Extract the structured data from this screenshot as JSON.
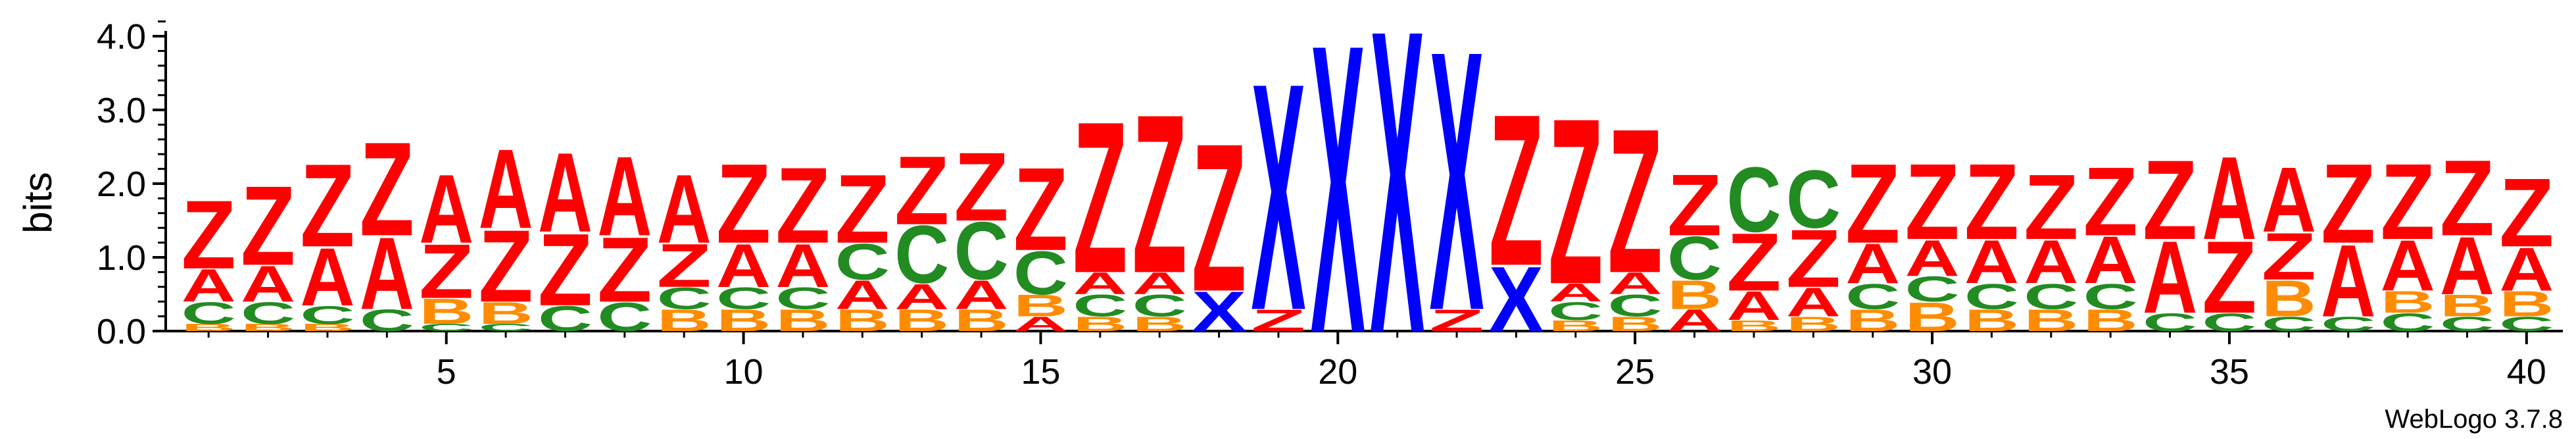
{
  "chart_data": {
    "type": "sequence-logo",
    "ylabel": "bits",
    "ylim": [
      0,
      4.2
    ],
    "y_ticks": [
      "0.0",
      "1.0",
      "2.0",
      "3.0",
      "4.0"
    ],
    "x_tick_labels": [
      "5",
      "10",
      "15",
      "20",
      "25",
      "30",
      "35",
      "40"
    ],
    "x_tick_positions": [
      5,
      10,
      15,
      20,
      25,
      30,
      35,
      40
    ],
    "credit": "WebLogo 3.7.8",
    "colors": {
      "Z": "#ff0000",
      "A": "#ff0000",
      "X": "#0000ff",
      "C": "#228b22",
      "B": "#ff8c00"
    },
    "positions": [
      {
        "pos": 1,
        "stack": [
          [
            "B",
            0.1
          ],
          [
            "C",
            0.3
          ],
          [
            "A",
            0.45
          ],
          [
            "Z",
            0.95
          ]
        ]
      },
      {
        "pos": 2,
        "stack": [
          [
            "B",
            0.1
          ],
          [
            "C",
            0.3
          ],
          [
            "A",
            0.5
          ],
          [
            "Z",
            1.1
          ]
        ]
      },
      {
        "pos": 3,
        "stack": [
          [
            "B",
            0.1
          ],
          [
            "C",
            0.25
          ],
          [
            "A",
            0.8
          ],
          [
            "Z",
            1.15
          ]
        ]
      },
      {
        "pos": 4,
        "stack": [
          [
            "C",
            0.3
          ],
          [
            "A",
            1.0
          ],
          [
            "Z",
            1.3
          ]
        ]
      },
      {
        "pos": 5,
        "stack": [
          [
            "C",
            0.1
          ],
          [
            "B",
            0.35
          ],
          [
            "Z",
            0.75
          ],
          [
            "A",
            0.95
          ]
        ]
      },
      {
        "pos": 6,
        "stack": [
          [
            "C",
            0.1
          ],
          [
            "B",
            0.3
          ],
          [
            "Z",
            1.0
          ],
          [
            "A",
            1.1
          ]
        ]
      },
      {
        "pos": 7,
        "stack": [
          [
            "C",
            0.35
          ],
          [
            "Z",
            1.0
          ],
          [
            "A",
            1.1
          ]
        ]
      },
      {
        "pos": 8,
        "stack": [
          [
            "C",
            0.4
          ],
          [
            "Z",
            0.9
          ],
          [
            "A",
            1.1
          ]
        ]
      },
      {
        "pos": 9,
        "stack": [
          [
            "B",
            0.3
          ],
          [
            "C",
            0.3
          ],
          [
            "Z",
            0.6
          ],
          [
            "A",
            0.95
          ]
        ]
      },
      {
        "pos": 10,
        "stack": [
          [
            "B",
            0.3
          ],
          [
            "C",
            0.3
          ],
          [
            "A",
            0.6
          ],
          [
            "Z",
            1.1
          ]
        ]
      },
      {
        "pos": 11,
        "stack": [
          [
            "B",
            0.3
          ],
          [
            "C",
            0.3
          ],
          [
            "A",
            0.6
          ],
          [
            "Z",
            1.05
          ]
        ]
      },
      {
        "pos": 12,
        "stack": [
          [
            "B",
            0.3
          ],
          [
            "A",
            0.4
          ],
          [
            "C",
            0.5
          ],
          [
            "Z",
            0.95
          ]
        ]
      },
      {
        "pos": 13,
        "stack": [
          [
            "B",
            0.3
          ],
          [
            "A",
            0.35
          ],
          [
            "C",
            0.8
          ],
          [
            "Z",
            0.95
          ]
        ]
      },
      {
        "pos": 14,
        "stack": [
          [
            "B",
            0.3
          ],
          [
            "A",
            0.4
          ],
          [
            "C",
            0.8
          ],
          [
            "Z",
            0.95
          ]
        ]
      },
      {
        "pos": 15,
        "stack": [
          [
            "A",
            0.2
          ],
          [
            "B",
            0.3
          ],
          [
            "C",
            0.6
          ],
          [
            "Z",
            1.15
          ]
        ]
      },
      {
        "pos": 16,
        "stack": [
          [
            "B",
            0.2
          ],
          [
            "C",
            0.3
          ],
          [
            "A",
            0.3
          ],
          [
            "Z",
            2.1
          ]
        ]
      },
      {
        "pos": 17,
        "stack": [
          [
            "B",
            0.2
          ],
          [
            "C",
            0.3
          ],
          [
            "A",
            0.3
          ],
          [
            "Z",
            2.2
          ]
        ]
      },
      {
        "pos": 18,
        "stack": [
          [
            "X",
            0.55
          ],
          [
            "Z",
            2.05
          ]
        ]
      },
      {
        "pos": 19,
        "stack": [
          [
            "Z",
            0.3
          ],
          [
            "X",
            3.15
          ]
        ]
      },
      {
        "pos": 20,
        "stack": [
          [
            "X",
            4.0
          ]
        ]
      },
      {
        "pos": 21,
        "stack": [
          [
            "X",
            4.2
          ]
        ]
      },
      {
        "pos": 22,
        "stack": [
          [
            "Z",
            0.3
          ],
          [
            "X",
            3.6
          ]
        ]
      },
      {
        "pos": 23,
        "stack": [
          [
            "X",
            0.9
          ],
          [
            "Z",
            2.1
          ]
        ]
      },
      {
        "pos": 24,
        "stack": [
          [
            "B",
            0.15
          ],
          [
            "C",
            0.25
          ],
          [
            "A",
            0.25
          ],
          [
            "Z",
            2.3
          ]
        ]
      },
      {
        "pos": 25,
        "stack": [
          [
            "B",
            0.2
          ],
          [
            "C",
            0.3
          ],
          [
            "A",
            0.3
          ],
          [
            "Z",
            2.0
          ]
        ]
      },
      {
        "pos": 26,
        "stack": [
          [
            "A",
            0.3
          ],
          [
            "B",
            0.4
          ],
          [
            "C",
            0.6
          ],
          [
            "Z",
            0.85
          ]
        ]
      },
      {
        "pos": 27,
        "stack": [
          [
            "B",
            0.15
          ],
          [
            "A",
            0.4
          ],
          [
            "Z",
            0.8
          ],
          [
            "C",
            0.9
          ]
        ]
      },
      {
        "pos": 28,
        "stack": [
          [
            "B",
            0.2
          ],
          [
            "A",
            0.4
          ],
          [
            "Z",
            0.8
          ],
          [
            "C",
            0.8
          ]
        ]
      },
      {
        "pos": 29,
        "stack": [
          [
            "B",
            0.3
          ],
          [
            "C",
            0.35
          ],
          [
            "A",
            0.55
          ],
          [
            "Z",
            1.1
          ]
        ]
      },
      {
        "pos": 30,
        "stack": [
          [
            "B",
            0.4
          ],
          [
            "C",
            0.35
          ],
          [
            "A",
            0.5
          ],
          [
            "Z",
            1.05
          ]
        ]
      },
      {
        "pos": 31,
        "stack": [
          [
            "B",
            0.3
          ],
          [
            "C",
            0.35
          ],
          [
            "A",
            0.6
          ],
          [
            "Z",
            1.05
          ]
        ]
      },
      {
        "pos": 32,
        "stack": [
          [
            "B",
            0.3
          ],
          [
            "C",
            0.35
          ],
          [
            "A",
            0.6
          ],
          [
            "Z",
            0.9
          ]
        ]
      },
      {
        "pos": 33,
        "stack": [
          [
            "B",
            0.3
          ],
          [
            "C",
            0.35
          ],
          [
            "A",
            0.65
          ],
          [
            "Z",
            0.95
          ]
        ]
      },
      {
        "pos": 34,
        "stack": [
          [
            "C",
            0.25
          ],
          [
            "A",
            1.0
          ],
          [
            "Z",
            1.1
          ]
        ]
      },
      {
        "pos": 35,
        "stack": [
          [
            "C",
            0.25
          ],
          [
            "Z",
            1.0
          ],
          [
            "A",
            1.15
          ]
        ]
      },
      {
        "pos": 36,
        "stack": [
          [
            "C",
            0.2
          ],
          [
            "B",
            0.5
          ],
          [
            "Z",
            0.65
          ],
          [
            "A",
            0.9
          ]
        ]
      },
      {
        "pos": 37,
        "stack": [
          [
            "C",
            0.2
          ],
          [
            "A",
            1.0
          ],
          [
            "Z",
            1.1
          ]
        ]
      },
      {
        "pos": 38,
        "stack": [
          [
            "C",
            0.25
          ],
          [
            "B",
            0.3
          ],
          [
            "A",
            0.7
          ],
          [
            "Z",
            1.05
          ]
        ]
      },
      {
        "pos": 39,
        "stack": [
          [
            "C",
            0.2
          ],
          [
            "B",
            0.3
          ],
          [
            "A",
            0.8
          ],
          [
            "Z",
            1.05
          ]
        ]
      },
      {
        "pos": 40,
        "stack": [
          [
            "C",
            0.2
          ],
          [
            "B",
            0.35
          ],
          [
            "A",
            0.6
          ],
          [
            "Z",
            0.95
          ]
        ]
      }
    ]
  }
}
